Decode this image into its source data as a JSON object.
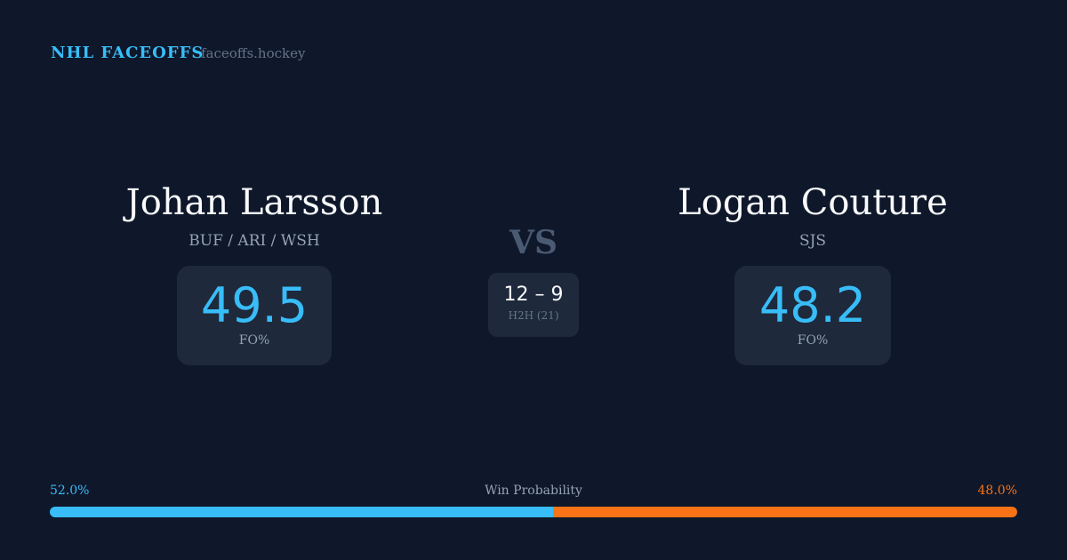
{
  "brand": "NHL FACEOFFS",
  "site": "faceoffs.hockey",
  "left": {
    "name": "Johan Larsson",
    "teams": "BUF / ARI / WSH",
    "fo": "49.5",
    "fo_label": "FO%"
  },
  "right": {
    "name": "Logan Couture",
    "teams": "SJS",
    "fo": "48.2",
    "fo_label": "FO%"
  },
  "vs": "VS",
  "h2h": {
    "score": "12 – 9",
    "label": "H2H (21)"
  },
  "win": {
    "label": "Win Probability",
    "left": "52.0%",
    "right": "48.0%",
    "left_value": 52.0,
    "right_value": 48.0,
    "left_color": "#38bdf8",
    "right_color": "#f97316"
  }
}
